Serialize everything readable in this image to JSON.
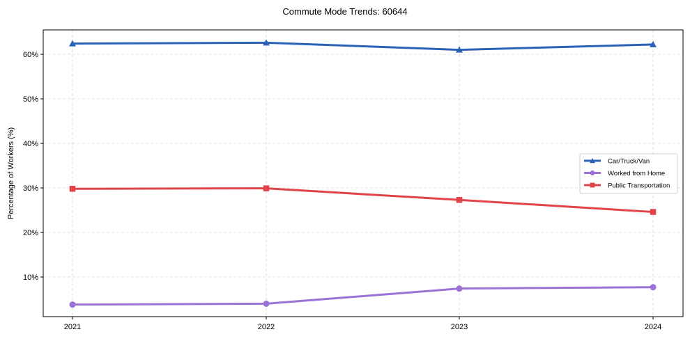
{
  "chart_data": {
    "type": "line",
    "title": "Commute Mode Trends: 60644",
    "xlabel": "",
    "ylabel": "Percentage of Workers (%)",
    "x": [
      "2021",
      "2022",
      "2023",
      "2024"
    ],
    "ylim": [
      1,
      65.5
    ],
    "yticks": [
      10,
      20,
      30,
      40,
      50,
      60
    ],
    "ytick_labels": [
      "10%",
      "20%",
      "30%",
      "40%",
      "50%",
      "60%"
    ],
    "grid": true,
    "legend_position": "center right",
    "series": [
      {
        "name": "Car/Truck/Van",
        "values": [
          62.4,
          62.6,
          61.0,
          62.2
        ],
        "color": "#2a62b8",
        "marker": "triangle"
      },
      {
        "name": "Worked from Home",
        "values": [
          3.8,
          4.0,
          7.4,
          7.7
        ],
        "color": "#9b72d6",
        "marker": "circle"
      },
      {
        "name": "Public Transportation",
        "values": [
          29.8,
          29.9,
          27.3,
          24.6
        ],
        "color": "#e04448",
        "marker": "square"
      }
    ]
  }
}
